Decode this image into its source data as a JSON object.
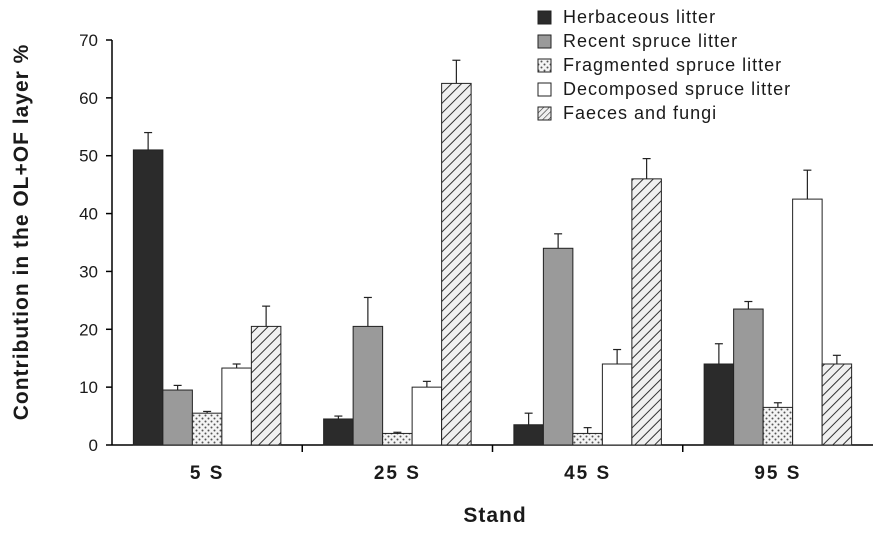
{
  "chart_data": {
    "type": "bar",
    "xlabel": "Stand",
    "ylabel": "Contribution in the OL+OF layer %",
    "ylim": [
      0,
      70
    ],
    "yticks": [
      0,
      10,
      20,
      30,
      40,
      50,
      60,
      70
    ],
    "grid": false,
    "legend_position": "top-right",
    "categories": [
      "5 S",
      "25 S",
      "45 S",
      "95 S"
    ],
    "series": [
      {
        "name": "Herbaceous litter",
        "pattern": "solid-dark",
        "color": "#2b2b2b",
        "values": [
          51,
          4.5,
          3.5,
          14
        ],
        "errors": [
          3,
          0.5,
          2,
          3.5
        ]
      },
      {
        "name": "Recent spruce litter",
        "pattern": "solid-gray",
        "color": "#9a9a9a",
        "values": [
          9.5,
          20.5,
          34,
          23.5
        ],
        "errors": [
          0.8,
          5,
          2.5,
          1.3
        ]
      },
      {
        "name": "Fragmented spruce litter",
        "pattern": "dotted",
        "color": "#cfcfcf",
        "values": [
          5.5,
          2,
          2,
          6.5
        ],
        "errors": [
          0.3,
          0.2,
          1,
          0.8
        ]
      },
      {
        "name": "Decomposed spruce litter",
        "pattern": "white",
        "color": "#ffffff",
        "values": [
          13.3,
          10,
          14,
          42.5
        ],
        "errors": [
          0.7,
          1,
          2.5,
          5
        ]
      },
      {
        "name": "Faeces and fungi",
        "pattern": "hatched",
        "color": "#d9d9d9",
        "values": [
          20.5,
          62.5,
          46,
          14
        ],
        "errors": [
          3.5,
          4,
          3.5,
          1.5
        ]
      }
    ]
  }
}
